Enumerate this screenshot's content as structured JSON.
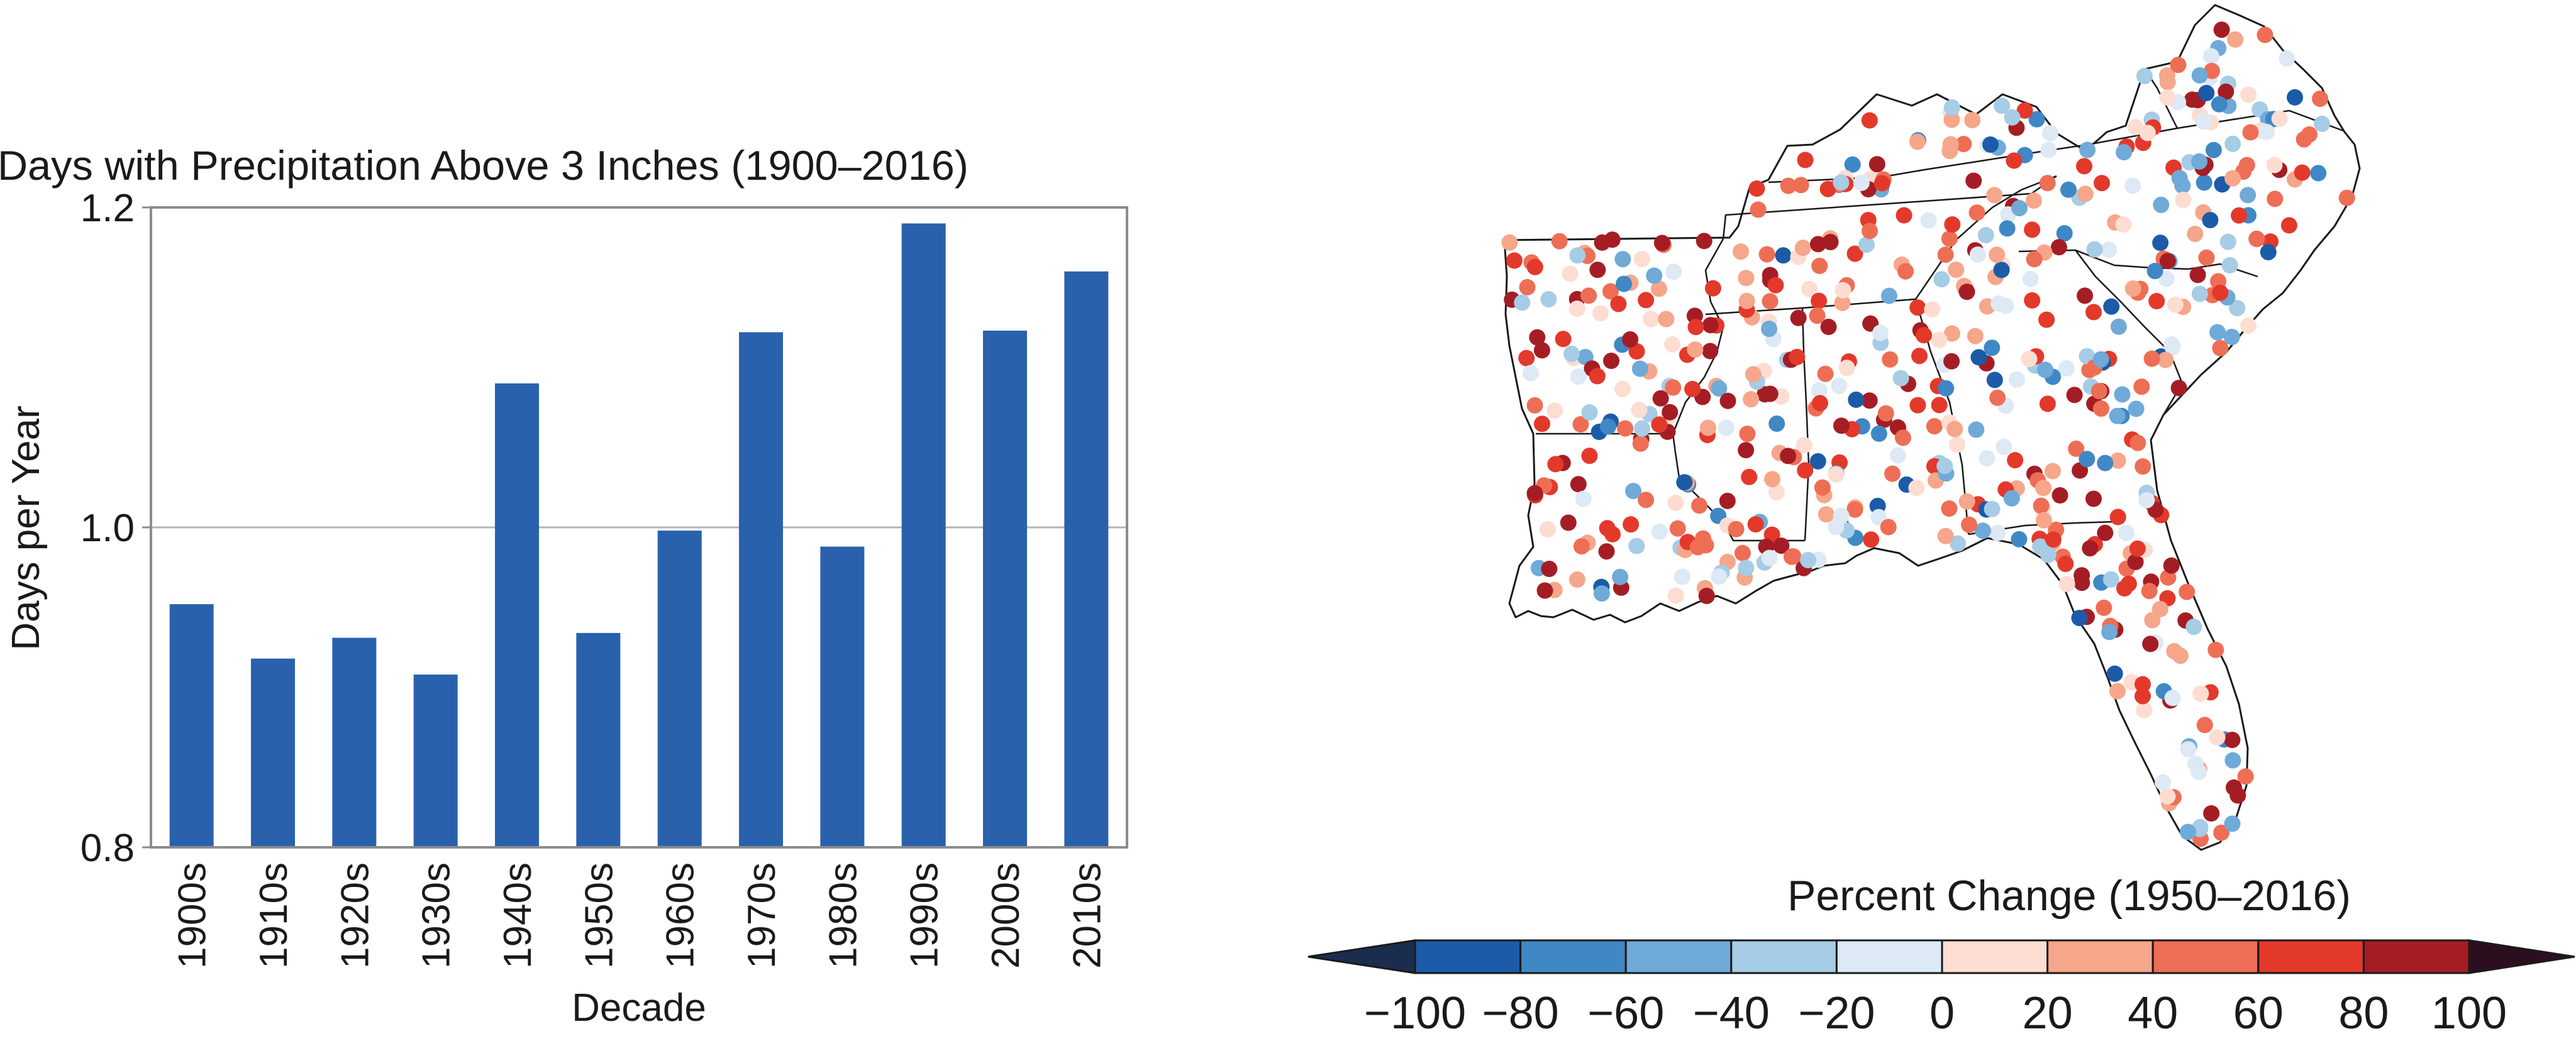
{
  "chart_data": [
    {
      "type": "bar",
      "title": "Days with Precipitation Above 3 Inches (1900–2016)",
      "xlabel": "Decade",
      "ylabel": "Days per Year",
      "ylim": [
        0.8,
        1.2
      ],
      "yticks": [
        "0.8",
        "1.0",
        "1.2"
      ],
      "grid": true,
      "bar_color": "#2a61ad",
      "categories": [
        "1900s",
        "1910s",
        "1920s",
        "1930s",
        "1940s",
        "1950s",
        "1960s",
        "1970s",
        "1980s",
        "1990s",
        "2000s",
        "2010s"
      ],
      "values": [
        0.952,
        0.918,
        0.931,
        0.908,
        1.09,
        0.934,
        0.998,
        1.122,
        0.988,
        1.19,
        1.123,
        1.16
      ]
    },
    {
      "type": "map",
      "legend_title": "Percent Change (1950–2016)",
      "colorbar": {
        "ticks": [
          "−100",
          "−80",
          "−60",
          "−40",
          "−20",
          "0",
          "20",
          "40",
          "60",
          "80",
          "100"
        ],
        "colors": [
          "#1b2d4f",
          "#1c5ba8",
          "#3f88c5",
          "#6faad8",
          "#a6cce6",
          "#dde9f5",
          "#fdddd2",
          "#f6a68a",
          "#ee6e55",
          "#e3392b",
          "#a51d24",
          "#2b0f1e"
        ]
      }
    }
  ]
}
